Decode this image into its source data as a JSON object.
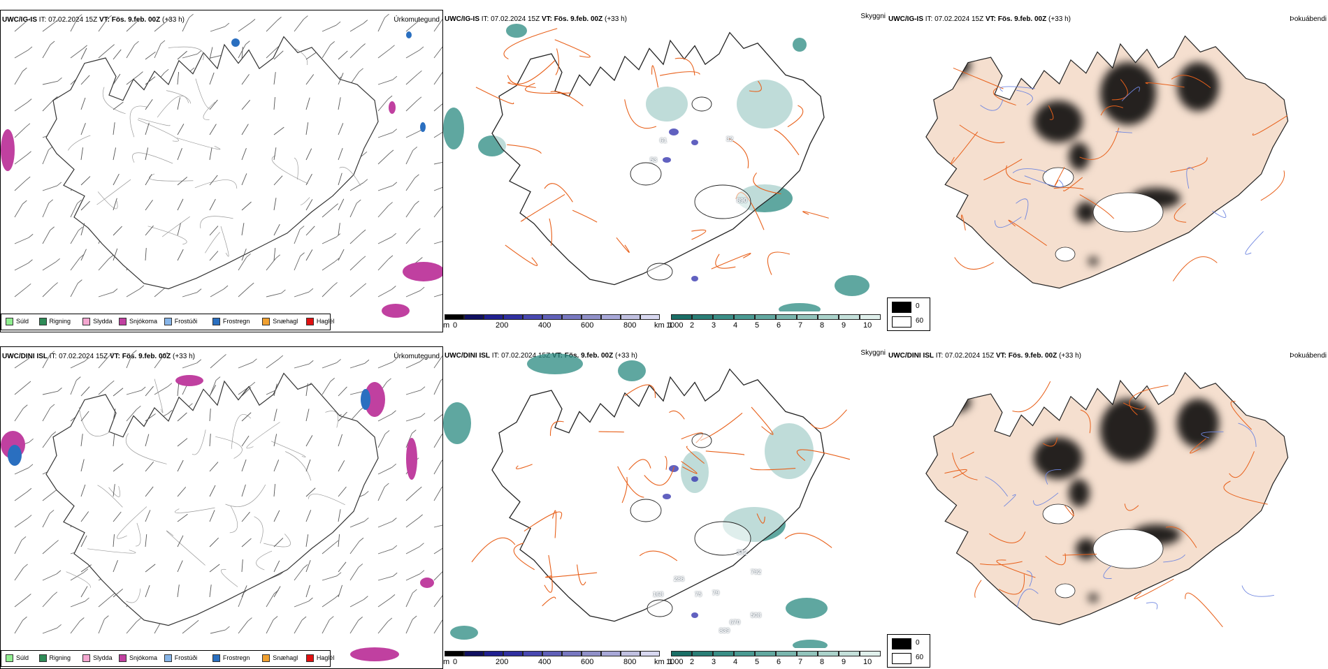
{
  "rows": [
    {
      "model": "UWC/IG-IS",
      "it_label": "IT:",
      "it": "07.02.2024 15Z",
      "vt_label": "VT:",
      "vt": "Fös. 9.feb. 00Z",
      "lead": "(+33 h)",
      "labels": [
        "61",
        "53",
        "32",
        "890"
      ]
    },
    {
      "model": "UWC/DINI ISL",
      "it_label": "IT:",
      "it": "07.02.2024 15Z",
      "vt_label": "VT:",
      "vt": "Fös. 9.feb. 00Z",
      "lead": "(+33 h)",
      "labels": [
        "286",
        "168",
        "75",
        "79",
        "332",
        "792",
        "670",
        "508",
        "839"
      ]
    }
  ],
  "panel_titles": {
    "precip": "Úrkomutegund",
    "vis": "Skyggni",
    "fog": "Þokuábendi"
  },
  "precip_legend": [
    {
      "label": "Súld",
      "color": "#90ee90"
    },
    {
      "label": "Rigning",
      "color": "#2e8b57"
    },
    {
      "label": "Slydda",
      "color": "#f4a7d0"
    },
    {
      "label": "Snjókoma",
      "color": "#c040a0"
    },
    {
      "label": "Frostúði",
      "color": "#87b5e8"
    },
    {
      "label": "Frostregn",
      "color": "#2a6fc0"
    },
    {
      "label": "Snæhagl",
      "color": "#f0a030"
    },
    {
      "label": "Haglél",
      "color": "#e01010"
    }
  ],
  "vis_bar_m": {
    "unit": "m",
    "ticks": [
      "0",
      "200",
      "400",
      "600",
      "800",
      "1000"
    ],
    "colors": [
      "#000000",
      "#101060",
      "#202090",
      "#3030a0",
      "#4848b0",
      "#6060b8",
      "#7878c0",
      "#9090c8",
      "#a8a8d8",
      "#c0c0e0",
      "#d8d8f0"
    ]
  },
  "vis_bar_km": {
    "unit": "km",
    "ticks": [
      "1",
      "2",
      "3",
      "4",
      "5",
      "6",
      "7",
      "8",
      "9",
      "10"
    ],
    "colors": [
      "#1a6e66",
      "#2a7e76",
      "#3a8e86",
      "#4a9a92",
      "#62a8a0",
      "#7ab6ae",
      "#92c4bc",
      "#aad2ca",
      "#c4e0da",
      "#e0f0ec"
    ]
  },
  "fog_legend": {
    "ticks": [
      "0",
      "60"
    ]
  },
  "colors": {
    "land": "#f5dfcf",
    "roads": "#e8601a",
    "rivers": "#6f86e0",
    "vis_low": "#2a8a80",
    "vis_blue": "#3a3ab0",
    "snow": "#c040a0",
    "frostrain": "#2a6fc0"
  }
}
